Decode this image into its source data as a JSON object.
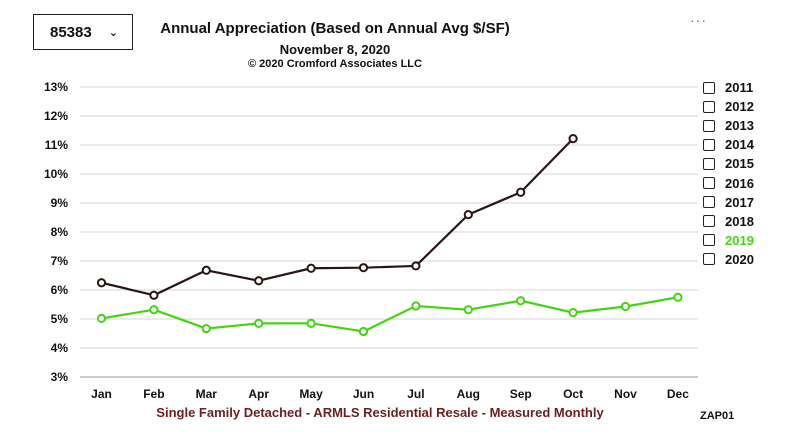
{
  "zip_selector": {
    "value": "85383"
  },
  "header": {
    "title": "Annual Appreciation (Based on Annual Avg $/SF)",
    "date": "November 8, 2020",
    "copyright": "© 2020 Cromford Associates LLC",
    "menu": "···"
  },
  "footer": {
    "caption": "Single Family Detached - ARMLS Residential Resale - Measured Monthly",
    "code": "ZAP01"
  },
  "legend": [
    {
      "label": "2011",
      "color": "#111111"
    },
    {
      "label": "2012",
      "color": "#111111"
    },
    {
      "label": "2013",
      "color": "#111111"
    },
    {
      "label": "2014",
      "color": "#111111"
    },
    {
      "label": "2015",
      "color": "#111111"
    },
    {
      "label": "2016",
      "color": "#111111"
    },
    {
      "label": "2017",
      "color": "#111111"
    },
    {
      "label": "2018",
      "color": "#111111"
    },
    {
      "label": "2019",
      "color": "#44d414"
    },
    {
      "label": "2020",
      "color": "#111111"
    }
  ],
  "chart_data": {
    "type": "line",
    "categories": [
      "Jan",
      "Feb",
      "Mar",
      "Apr",
      "May",
      "Jun",
      "Jul",
      "Aug",
      "Sep",
      "Oct",
      "Nov",
      "Dec"
    ],
    "y_ticks": [
      "3%",
      "4%",
      "5%",
      "6%",
      "7%",
      "8%",
      "9%",
      "10%",
      "11%",
      "12%",
      "13%"
    ],
    "ylim": [
      3,
      13
    ],
    "grid": true,
    "legend_position": "right",
    "series": [
      {
        "name": "2020",
        "color": "#2b1414",
        "values": [
          6.25,
          5.82,
          6.68,
          6.32,
          6.75,
          6.77,
          6.83,
          8.6,
          9.37,
          11.22,
          null,
          null
        ]
      },
      {
        "name": "2019",
        "color": "#44d414",
        "values": [
          5.02,
          5.32,
          4.67,
          4.85,
          4.85,
          4.57,
          5.45,
          5.32,
          5.63,
          5.22,
          5.43,
          5.75
        ]
      }
    ]
  }
}
